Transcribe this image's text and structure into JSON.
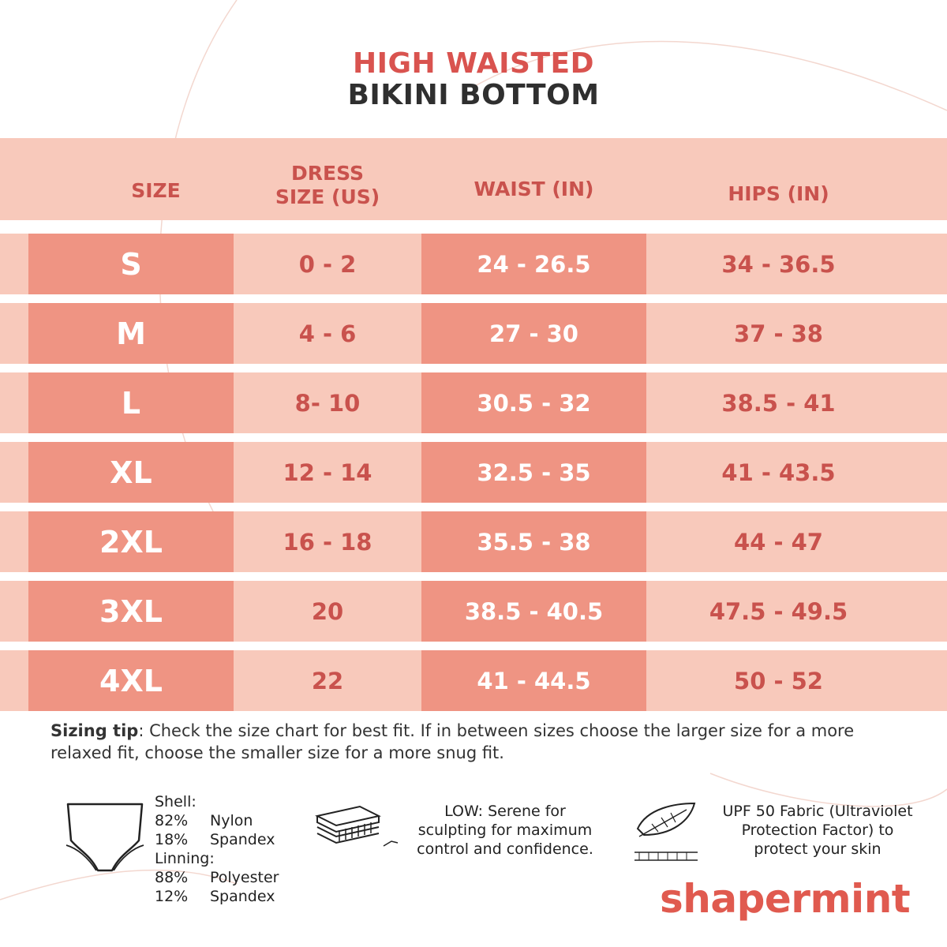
{
  "title": {
    "line1": "HIGH WAISTED",
    "line2": "BIKINI BOTTOM"
  },
  "colors": {
    "accent": "#d9534f",
    "band": "#f8c9bb",
    "cell_dark": "#ef9483",
    "text_red": "#c9524d"
  },
  "table": {
    "headers": {
      "size": "SIZE",
      "dress_line1": "DRESS",
      "dress_line2": "SIZE (US)",
      "waist": "WAIST (IN)",
      "hips": "HIPS (IN)"
    },
    "rows": [
      {
        "size": "S",
        "dress": "0 - 2",
        "waist": "24 - 26.5",
        "hips": "34 - 36.5"
      },
      {
        "size": "M",
        "dress": "4 - 6",
        "waist": "27 - 30",
        "hips": "37 - 38"
      },
      {
        "size": "L",
        "dress": "8- 10",
        "waist": "30.5 - 32",
        "hips": "38.5 - 41"
      },
      {
        "size": "XL",
        "dress": "12 - 14",
        "waist": "32.5 - 35",
        "hips": "41 - 43.5"
      },
      {
        "size": "2XL",
        "dress": "16 - 18",
        "waist": "35.5 - 38",
        "hips": "44 - 47"
      },
      {
        "size": "3XL",
        "dress": "20",
        "waist": "38.5 - 40.5",
        "hips": "47.5 - 49.5"
      },
      {
        "size": "4XL",
        "dress": "22",
        "waist": "41 - 44.5",
        "hips": "50 - 52"
      }
    ]
  },
  "tip": {
    "label": "Sizing tip",
    "text": ": Check the size chart for best fit. If in between sizes choose the larger size for a more relaxed fit, choose the smaller size for a more snug fit."
  },
  "materials": {
    "icon": "briefs-icon",
    "shell_label": "Shell:",
    "shell": [
      {
        "pct": "82%",
        "name": "Nylon"
      },
      {
        "pct": "18%",
        "name": "Spandex"
      }
    ],
    "lining_label": "Linning:",
    "lining": [
      {
        "pct": "88%",
        "name": "Polyester"
      },
      {
        "pct": "12%",
        "name": "Spandex"
      }
    ]
  },
  "compression": {
    "icon": "fabric-layers-icon",
    "text_l1": "LOW: Serene for",
    "text_l2": "sculpting for maximum",
    "text_l3": "control and confidence."
  },
  "upf": {
    "icon": "feather-icon",
    "text_l1": "UPF 50 Fabric (Ultraviolet",
    "text_l2": "Protection Factor) to",
    "text_l3": "protect your skin"
  },
  "brand": {
    "name": "shapermint"
  }
}
